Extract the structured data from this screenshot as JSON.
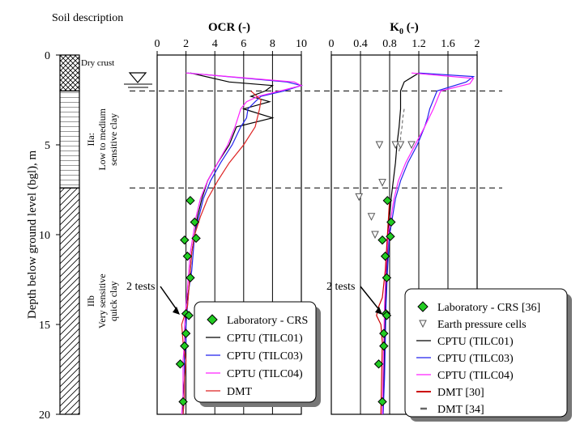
{
  "chart_data": {
    "type": "line",
    "ylabel": "Depth below ground level (bgl), m",
    "depth_ticks": [
      "0",
      "5",
      "10",
      "15",
      "20"
    ],
    "ylim": [
      0,
      20
    ],
    "soil_profile": {
      "title": "Soil description",
      "layers": [
        {
          "name": "Dry crust",
          "top": 0,
          "bottom": 2.0,
          "pattern": "crosshatch"
        },
        {
          "name": "IIa: Low to medium sensitive clay",
          "line1": "IIa:",
          "line2": "Low to medium",
          "line3": "sensitive clay",
          "top": 2.0,
          "bottom": 7.4,
          "pattern": "horizontal"
        },
        {
          "name": "IIb Very sensitive quick clay",
          "line1": "IIb",
          "line2": "Very sensitive",
          "line3": "quick clay",
          "top": 7.4,
          "bottom": 20,
          "pattern": "diagonal"
        }
      ],
      "water_table_depth": 1.7
    },
    "boundaries": [
      2.0,
      7.4
    ],
    "panels": [
      {
        "title": "OCR (-)",
        "xlim": [
          0,
          10
        ],
        "xticks": [
          "0",
          "2",
          "4",
          "6",
          "8",
          "10"
        ],
        "tests_note": "2 tests",
        "series": [
          {
            "name": "Laboratory - CRS",
            "color": "#22cc22",
            "depth": [
              8.1,
              9.3,
              10.2,
              10.3,
              11.2,
              12.4,
              14.4,
              14.5,
              15.5,
              16.2,
              17.2,
              19.3
            ],
            "values": [
              2.3,
              2.6,
              2.7,
              1.9,
              2.1,
              2.3,
              2.0,
              2.2,
              2.0,
              1.9,
              1.6,
              1.8
            ]
          },
          {
            "name": "CPTU (TILC01)",
            "color": "#000000",
            "depth": [
              1.0,
              1.5,
              1.7,
              2.0,
              2.3,
              2.6,
              3.0,
              3.5,
              4.0,
              5.0,
              6.0,
              7.0,
              8.0,
              9.0,
              10.0,
              11.0,
              12.0,
              13.0,
              14.0,
              15.0,
              16.0,
              17.0,
              18.0,
              19.0,
              20.0
            ],
            "values": [
              2.3,
              5.0,
              8.0,
              7.5,
              6.5,
              7.8,
              6.0,
              8.0,
              5.5,
              5.0,
              4.2,
              3.5,
              3.1,
              2.8,
              2.6,
              2.4,
              2.3,
              2.2,
              2.0,
              2.0,
              1.9,
              1.9,
              1.9,
              1.8,
              1.8
            ]
          },
          {
            "name": "CPTU (TILC03)",
            "color": "#2222ee",
            "depth": [
              1.0,
              1.5,
              1.7,
              2.0,
              2.3,
              2.6,
              3.0,
              3.5,
              4.0,
              5.0,
              6.0,
              7.0,
              8.0,
              9.0,
              10.0,
              11.0,
              12.0,
              13.0,
              14.0,
              15.0,
              16.0,
              17.0,
              18.0,
              19.0,
              20.0
            ],
            "values": [
              2.1,
              9.0,
              10.0,
              8.8,
              7.2,
              6.8,
              6.3,
              6.2,
              5.8,
              5.2,
              4.4,
              3.7,
              3.2,
              2.9,
              2.6,
              2.5,
              2.4,
              2.2,
              2.1,
              2.0,
              2.0,
              1.9,
              1.9,
              1.9,
              1.8
            ]
          },
          {
            "name": "CPTU (TILC04)",
            "color": "#ff22ff",
            "depth": [
              1.0,
              1.5,
              1.7,
              2.0,
              2.3,
              2.6,
              3.0,
              3.5,
              4.0,
              5.0,
              6.0,
              7.0,
              8.0,
              9.0,
              10.0,
              11.0,
              12.0,
              13.0,
              14.0,
              15.0,
              16.0,
              17.0,
              18.0,
              19.0,
              20.0
            ],
            "values": [
              2.0,
              9.5,
              10.0,
              8.5,
              7.0,
              6.2,
              5.8,
              5.6,
              5.4,
              4.9,
              4.2,
              3.5,
              3.0,
              2.7,
              2.5,
              2.3,
              2.2,
              2.1,
              2.0,
              1.9,
              1.9,
              1.8,
              1.8,
              1.8,
              1.7
            ]
          },
          {
            "name": "DMT",
            "color": "#dd2222",
            "depth": [
              2.0,
              2.5,
              3.0,
              4.0,
              5.0,
              6.0,
              7.0,
              8.0,
              9.0,
              10.0,
              11.0,
              12.0,
              13.0,
              14.0,
              15.0,
              16.0,
              17.0,
              18.0,
              19.0,
              20.0
            ],
            "values": [
              6.5,
              7.2,
              7.1,
              6.8,
              6.0,
              5.0,
              4.2,
              3.5,
              3.0,
              2.6,
              2.4,
              2.3,
              2.2,
              2.1,
              1.7,
              1.8,
              2.0,
              1.9,
              1.9,
              1.8
            ]
          }
        ]
      },
      {
        "title": "K",
        "title_sub": "0",
        "title_unit": " (-)",
        "xlim": [
          0,
          2
        ],
        "xticks": [
          "0",
          "0.4",
          "0.8",
          "1.2",
          "1.6",
          "2"
        ],
        "tests_note": "2 tests",
        "series": [
          {
            "name": "Laboratory - CRS [36]",
            "color": "#22cc22",
            "depth": [
              8.1,
              9.3,
              10.1,
              10.3,
              11.2,
              12.4,
              14.4,
              14.5,
              15.5,
              16.2,
              17.2,
              19.3
            ],
            "values": [
              0.77,
              0.82,
              0.81,
              0.7,
              0.74,
              0.76,
              0.75,
              0.76,
              0.72,
              0.72,
              0.65,
              0.7
            ]
          },
          {
            "name": "Earth pressure cells",
            "color": "#555555",
            "depth": [
              5.0,
              5.0,
              5.0,
              5.0,
              7.1,
              7.9,
              9.0,
              10.0
            ],
            "values": [
              0.66,
              0.88,
              0.95,
              1.1,
              0.7,
              0.38,
              0.55,
              0.6
            ]
          },
          {
            "name": "CPTU (TILC01)",
            "color": "#000000",
            "depth": [
              1.0,
              1.5,
              2.0,
              3.0,
              4.0,
              5.0,
              6.0,
              7.0,
              8.0,
              9.0,
              10.0,
              12.0,
              14.0,
              16.0,
              18.0,
              20.0
            ],
            "values": [
              1.2,
              1.0,
              0.95,
              0.95,
              0.93,
              0.9,
              0.88,
              0.85,
              0.82,
              0.8,
              0.78,
              0.76,
              0.74,
              0.73,
              0.72,
              0.71
            ]
          },
          {
            "name": "CPTU (TILC03)",
            "color": "#2222ee",
            "depth": [
              1.0,
              1.2,
              1.5,
              2.0,
              3.0,
              3.5,
              4.0,
              5.0,
              6.0,
              7.0,
              8.0,
              9.0,
              10.0,
              12.0,
              14.0,
              16.0,
              18.0,
              20.0
            ],
            "values": [
              1.2,
              1.95,
              1.85,
              1.45,
              1.35,
              1.32,
              1.28,
              1.18,
              1.05,
              0.95,
              0.88,
              0.84,
              0.8,
              0.77,
              0.75,
              0.74,
              0.73,
              0.71
            ]
          },
          {
            "name": "CPTU (TILC04)",
            "color": "#ff22ff",
            "depth": [
              1.0,
              1.3,
              1.6,
              2.0,
              3.0,
              4.0,
              5.0,
              6.0,
              7.0,
              8.0,
              9.0,
              10.0,
              12.0,
              14.0,
              16.0,
              18.0,
              20.0
            ],
            "values": [
              1.1,
              1.95,
              1.9,
              1.5,
              1.4,
              1.28,
              1.15,
              1.02,
              0.92,
              0.86,
              0.82,
              0.78,
              0.75,
              0.73,
              0.72,
              0.71,
              0.7
            ]
          },
          {
            "name": "DMT [30]",
            "color": "#cc0000",
            "depth": [
              8.0,
              10.0,
              12.0,
              13.5,
              14.0,
              14.5,
              15.0,
              16.0,
              18.0,
              20.0
            ],
            "values": [
              0.8,
              0.77,
              0.74,
              0.7,
              0.65,
              0.62,
              0.68,
              0.7,
              0.69,
              0.68
            ]
          },
          {
            "name": "DMT [34]",
            "color": "#777777",
            "depth": [
              3.0,
              3.5,
              4.0,
              4.5,
              5.0,
              5.5
            ],
            "values": [
              1.0,
              0.98,
              0.97,
              0.95,
              0.95,
              0.92
            ]
          }
        ]
      }
    ]
  }
}
